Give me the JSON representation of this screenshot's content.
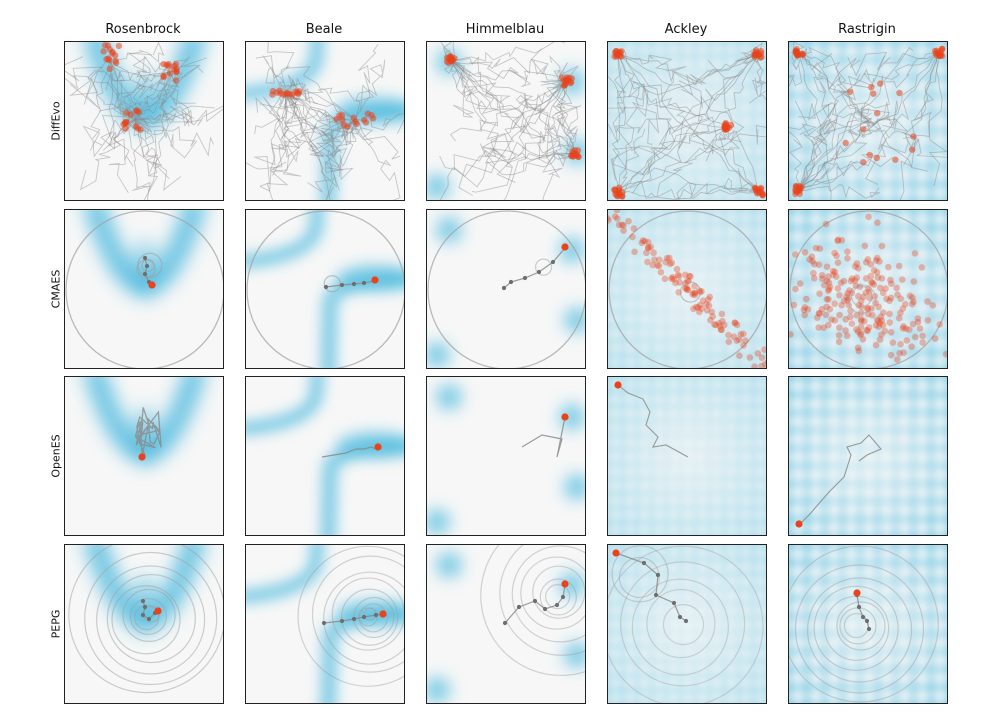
{
  "columns": [
    "Rosenbrock",
    "Beale",
    "Himmelblau",
    "Ackley",
    "Rastrigin"
  ],
  "rows": [
    "DiffEvo",
    "CMAES",
    "OpenES",
    "PEPG"
  ],
  "colors": {
    "landscape": "#3cb4dc",
    "background": "#f7f7f7",
    "trajectory": "#8a8a8a",
    "population": "#e8431c",
    "circle": "#a0a0a0"
  }
}
